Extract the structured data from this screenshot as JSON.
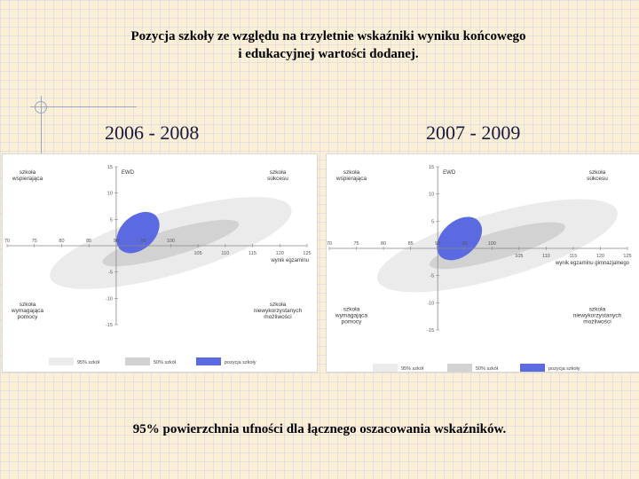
{
  "title": {
    "line1": "Pozycja szkoły ze względu na trzyletnie wskaźniki wyniku końcowego",
    "line2": "i edukacyjnej wartości dodanej."
  },
  "footer": "95% powierzchnia ufności dla łącznego oszacowania wskaźników.",
  "colors": {
    "ellipse_95": "#ebebeb",
    "ellipse_50": "#d2d2d2",
    "position": "#5b6ae0",
    "axis": "#888888"
  },
  "chart_data": [
    {
      "type": "scatter",
      "period": "2006 - 2008",
      "xlim": [
        70,
        125
      ],
      "ylim": [
        -15,
        15
      ],
      "x_ticks": [
        "70",
        "75",
        "80",
        "85",
        "90",
        "95",
        "100",
        "105",
        "110",
        "115",
        "120",
        "125"
      ],
      "y_ticks": [
        "-15",
        "-10",
        "-5",
        "5",
        "10",
        "15"
      ],
      "y_axis_label": "EWD",
      "x_axis_label": "wynik egzaminu",
      "quadrants": {
        "top_left": "szkoła wspierająca",
        "top_right": "szkoła sukcesu",
        "bottom_left": "szkoła wymagająca pomocy",
        "bottom_right": "szkoła niewykorzystanych możliwości"
      },
      "regions": [
        {
          "name": "95% szkół",
          "cx": 100,
          "cy": 0.5,
          "rx": 23,
          "ry": 6,
          "angle_deg": -16
        },
        {
          "name": "50% szkół",
          "cx": 100,
          "cy": 0.5,
          "rx": 13,
          "ry": 2.5,
          "angle_deg": -16
        },
        {
          "name": "pozycja szkoły",
          "cx": 94,
          "cy": 2.5,
          "rx": 4.5,
          "ry": 3.2,
          "angle_deg": -42
        }
      ],
      "legend": [
        "95% szkół",
        "50% szkół",
        "pozycja szkoły"
      ]
    },
    {
      "type": "scatter",
      "period": "2007 - 2009",
      "xlim": [
        70,
        125
      ],
      "ylim": [
        -15,
        15
      ],
      "x_ticks": [
        "70",
        "75",
        "80",
        "85",
        "90",
        "95",
        "100",
        "105",
        "110",
        "115",
        "120",
        "125"
      ],
      "y_ticks": [
        "-15",
        "-10",
        "-5",
        "5",
        "10",
        "15"
      ],
      "y_axis_label": "EWD",
      "x_axis_label": "wynik egzaminu gimnazjalnego",
      "quadrants": {
        "top_left": "szkoła wspierająca",
        "top_right": "szkoła sukcesu",
        "bottom_left": "szkoła wymagająca pomocy",
        "bottom_right": "szkoła niewykorzystanych możliwości"
      },
      "regions": [
        {
          "name": "95% szkół",
          "cx": 101,
          "cy": 0.5,
          "rx": 23,
          "ry": 6,
          "angle_deg": -16
        },
        {
          "name": "50% szkół",
          "cx": 101,
          "cy": 0.5,
          "rx": 13,
          "ry": 2.5,
          "angle_deg": -16
        },
        {
          "name": "pozycja szkoły",
          "cx": 94,
          "cy": 1.8,
          "rx": 4.8,
          "ry": 3.2,
          "angle_deg": -42
        }
      ],
      "legend": [
        "95% szkół",
        "50% szkół",
        "pozycja szkoły"
      ]
    }
  ]
}
